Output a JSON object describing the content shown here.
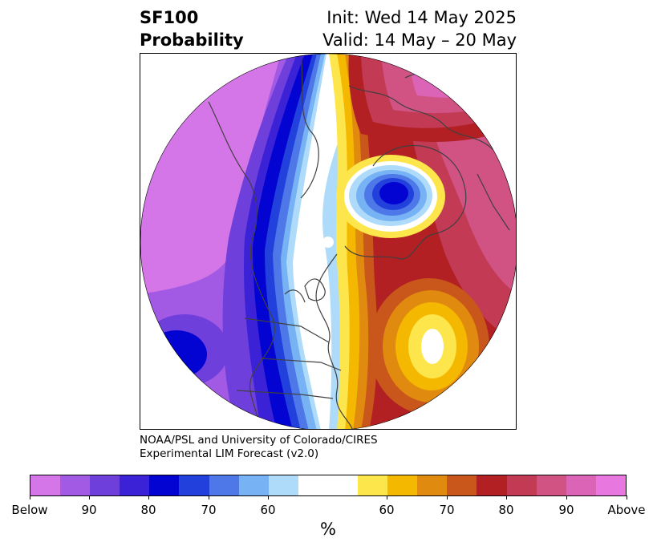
{
  "title": {
    "variable": "SF100",
    "product": "Probability",
    "init": "Init: Wed 14 May 2025",
    "valid": "Valid: 14 May – 20 May"
  },
  "credit": {
    "line1": "NOAA/PSL and University of Colorado/CIRES",
    "line2": "Experimental LIM Forecast (v2.0)"
  },
  "colorbar": {
    "units": "%",
    "colors": [
      "#d576e8",
      "#a25ae4",
      "#6e3fdb",
      "#3b22d6",
      "#0303d2",
      "#2240dc",
      "#4e77e8",
      "#76b2f4",
      "#aedbfa",
      "#ffffff",
      "#fde64b",
      "#f5b800",
      "#e08a10",
      "#c9561a",
      "#b22024",
      "#c33a55",
      "#d05384",
      "#dc64b7",
      "#e878e0"
    ],
    "labels": [
      "Below",
      "90",
      "80",
      "70",
      "60",
      "60",
      "70",
      "80",
      "90",
      "Above"
    ]
  },
  "map": {
    "projection": "polar stereographic (North Pole)",
    "features": [
      "coastlines",
      "country borders",
      "US state borders"
    ]
  }
}
